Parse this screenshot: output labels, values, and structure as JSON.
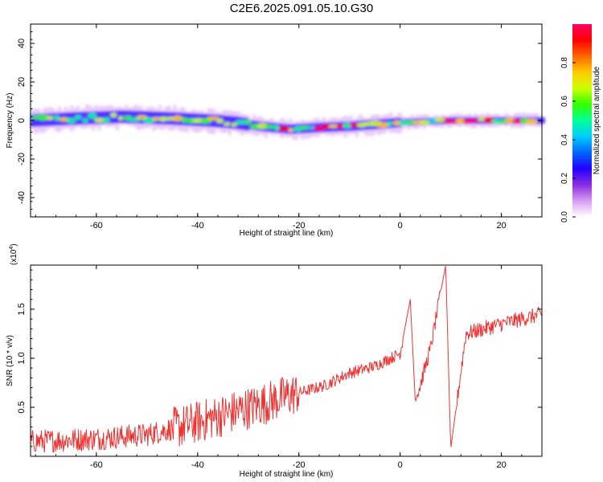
{
  "title": "C2E6.2025.091.05.10.G30",
  "chart_data": [
    {
      "type": "heatmap",
      "xlabel": "Height of straight line (km)",
      "ylabel": "Frequency (Hz)",
      "xlim": [
        -73,
        28
      ],
      "ylim": [
        -50,
        50
      ],
      "x_ticks": [
        -60,
        -40,
        -20,
        0,
        20
      ],
      "y_ticks": [
        -40,
        -20,
        0,
        20,
        40
      ],
      "colorbar": {
        "label": "Normalized spectral amplitude",
        "range": [
          0,
          1
        ],
        "ticks": [
          "0.0",
          "0.2",
          "0.4",
          "0.6",
          "0.8"
        ],
        "colors": [
          "#ffffff",
          "#d89cf2",
          "#8a2be2",
          "#2200ff",
          "#0066ff",
          "#00ccff",
          "#00ff99",
          "#33ff00",
          "#ccff00",
          "#ffcc00",
          "#ff6600",
          "#ff0000",
          "#ff0066"
        ]
      },
      "band_center": [
        {
          "x": -73,
          "f": 0
        },
        {
          "x": -65,
          "f": 1
        },
        {
          "x": -55,
          "f": 2
        },
        {
          "x": -45,
          "f": 1
        },
        {
          "x": -38,
          "f": 0
        },
        {
          "x": -33,
          "f": -1
        },
        {
          "x": -28,
          "f": -3
        },
        {
          "x": -22,
          "f": -4.5
        },
        {
          "x": -15,
          "f": -3.5
        },
        {
          "x": -10,
          "f": -3
        },
        {
          "x": -5,
          "f": -2
        },
        {
          "x": 0,
          "f": -1
        },
        {
          "x": 10,
          "f": 0
        },
        {
          "x": 28,
          "f": 0
        }
      ]
    },
    {
      "type": "line",
      "xlabel": "Height of straight line (km)",
      "ylabel": "SNR (10 * v/v)",
      "multiplier": "(x10",
      "multiplier_exp": "4",
      "xlim": [
        -73,
        28
      ],
      "ylim": [
        0,
        1.95
      ],
      "x_ticks": [
        -60,
        -40,
        -20,
        0,
        20
      ],
      "y_ticks": [
        "0.5",
        "1.0",
        "1.5"
      ],
      "series": [
        {
          "color": "#ee3333",
          "trend": [
            {
              "x": -73,
              "y": 0.15
            },
            {
              "x": -60,
              "y": 0.18
            },
            {
              "x": -50,
              "y": 0.22
            },
            {
              "x": -42,
              "y": 0.32
            },
            {
              "x": -35,
              "y": 0.42
            },
            {
              "x": -28,
              "y": 0.52
            },
            {
              "x": -22,
              "y": 0.62
            },
            {
              "x": -15,
              "y": 0.72
            },
            {
              "x": -10,
              "y": 0.85
            },
            {
              "x": -5,
              "y": 0.92
            },
            {
              "x": 0,
              "y": 1.05
            },
            {
              "x": 2,
              "y": 1.6
            },
            {
              "x": 3,
              "y": 0.55
            },
            {
              "x": 6,
              "y": 1.1
            },
            {
              "x": 9,
              "y": 1.95
            },
            {
              "x": 10,
              "y": 0.08
            },
            {
              "x": 13,
              "y": 1.25
            },
            {
              "x": 20,
              "y": 1.35
            },
            {
              "x": 28,
              "y": 1.45
            }
          ]
        }
      ]
    }
  ]
}
